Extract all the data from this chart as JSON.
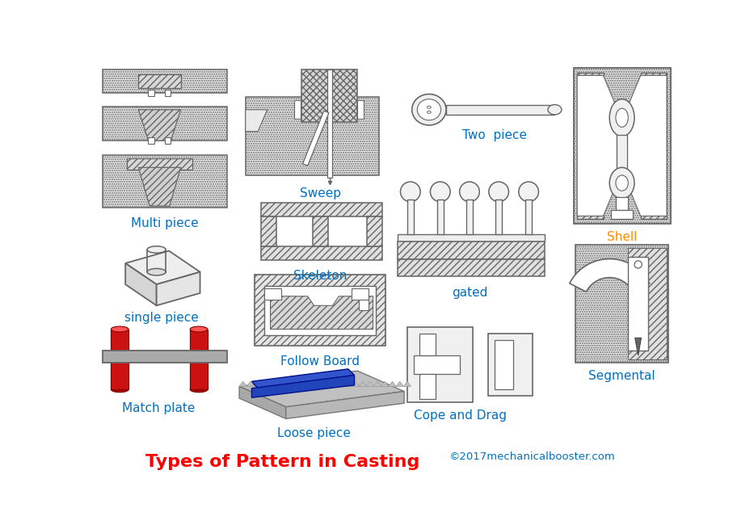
{
  "title": "Types of Pattern in Casting",
  "copyright": "©2017mechanicalbooster.com",
  "title_color": "#ff0000",
  "copyright_color": "#0070c0",
  "background_color": "#ffffff",
  "label_multi_piece": "Multi piece",
  "label_single_piece": "single piece",
  "label_match_plate": "Match plate",
  "label_sweep": "Sweep",
  "label_skeleton": "Skeleton",
  "label_follow_board": "Follow Board",
  "label_loose_piece": "Loose piece",
  "label_two_piece": "Two  piece",
  "label_gated": "gated",
  "label_cope_drag": "Cope and Drag",
  "label_shell": "Shell",
  "label_segmental": "Segmental",
  "label_color": "#0070c0",
  "shell_label_color": "#ff8c00",
  "line_color": "#666666",
  "red_color": "#cc1111",
  "blue_color": "#1122cc",
  "gray_color": "#aaaaaa",
  "light_gray": "#f0f0f0",
  "dot_gray": "#e8e8e8",
  "hatch_gray": "#e0e0e0"
}
